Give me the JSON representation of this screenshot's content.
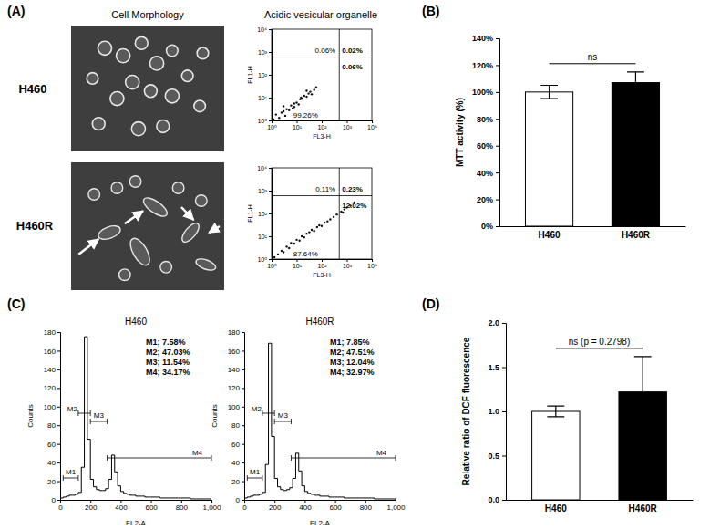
{
  "chart_data": [
    {
      "type": "scatter",
      "panel": "(A)",
      "image_title": "Cell Morphology",
      "column_title": "Acidic vesicular organelle",
      "title": "H460",
      "xlabel": "FL3-H",
      "ylabel": "FL1-H",
      "log": true,
      "color": "#111111",
      "x": [
        1.2,
        1.5,
        2,
        2.5,
        3,
        3.5,
        4,
        5,
        6,
        7,
        8,
        10,
        12,
        14,
        17,
        20,
        25,
        30,
        35,
        40,
        50,
        60,
        3,
        8,
        15,
        25
      ],
      "values": [
        1.1,
        1.8,
        1.3,
        2.2,
        2.5,
        1.6,
        3.1,
        2.8,
        4.5,
        3.4,
        5.5,
        6,
        5,
        8.5,
        9,
        12,
        11,
        15,
        18,
        14,
        22,
        28,
        4.2,
        3.9,
        10,
        20
      ],
      "xlim": [
        1,
        10000
      ],
      "ylim": [
        1,
        10000
      ],
      "xticks": [
        {
          "value": 1,
          "label": "10⁰"
        },
        {
          "value": 10,
          "label": "10¹"
        },
        {
          "value": 100,
          "label": "10²"
        },
        {
          "value": 1000,
          "label": "10³"
        },
        {
          "value": 10000,
          "label": "10⁴"
        }
      ],
      "yticks": [
        {
          "value": 1,
          "label": "10⁰"
        },
        {
          "value": 10,
          "label": "10¹"
        },
        {
          "value": 100,
          "label": "10²"
        },
        {
          "value": 1000,
          "label": "10³"
        },
        {
          "value": 10000,
          "label": "10⁴"
        }
      ],
      "x_gate": 500,
      "y_gate": 600,
      "quadrant_values": [
        0.06,
        0.02,
        99.26,
        0.06
      ],
      "quadrant_labels": [
        "0.06%",
        "0.02%",
        "99.26%",
        "0.06%"
      ]
    },
    {
      "type": "scatter",
      "title": "H460R",
      "xlabel": "FL3-H",
      "ylabel": "FL1-H",
      "log": true,
      "color": "#111111",
      "x": [
        1.3,
        1.8,
        2.5,
        3,
        4,
        5,
        6,
        8,
        10,
        13,
        16,
        20,
        25,
        32,
        40,
        50,
        65,
        80,
        100,
        130,
        170,
        220,
        300,
        400,
        600,
        800,
        1000,
        1400,
        2000,
        700
      ],
      "values": [
        1.2,
        1.6,
        2.3,
        2,
        3.5,
        3,
        5,
        4.8,
        7,
        6.5,
        10,
        9,
        13,
        15,
        19,
        17,
        25,
        30,
        28,
        40,
        45,
        55,
        70,
        90,
        120,
        150,
        180,
        220,
        300,
        110
      ],
      "xlim": [
        1,
        10000
      ],
      "ylim": [
        1,
        10000
      ],
      "xticks": [
        {
          "value": 1,
          "label": "10⁰"
        },
        {
          "value": 10,
          "label": "10¹"
        },
        {
          "value": 100,
          "label": "10²"
        },
        {
          "value": 1000,
          "label": "10³"
        },
        {
          "value": 10000,
          "label": "10⁴"
        }
      ],
      "yticks": [
        {
          "value": 1,
          "label": "10⁰"
        },
        {
          "value": 10,
          "label": "10¹"
        },
        {
          "value": 100,
          "label": "10²"
        },
        {
          "value": 1000,
          "label": "10³"
        },
        {
          "value": 10000,
          "label": "10⁴"
        }
      ],
      "x_gate": 500,
      "y_gate": 600,
      "quadrant_values": [
        0.11,
        0.23,
        87.64,
        12.02
      ],
      "quadrant_labels": [
        "0.11%",
        "0.23%",
        "87.64%",
        "12.02%"
      ]
    },
    {
      "type": "bar",
      "panel": "(B)",
      "ylabel": "MTT activity (%)",
      "categories": [
        "H460",
        "H460R"
      ],
      "values": [
        100,
        107
      ],
      "errors": [
        5,
        8
      ],
      "colors": [
        "#ffffff",
        "#000000"
      ],
      "ylim": [
        0,
        140
      ],
      "yticks": [
        {
          "value": 0,
          "label": "0%"
        },
        {
          "value": 20,
          "label": "20%"
        },
        {
          "value": 40,
          "label": "40%"
        },
        {
          "value": 60,
          "label": "60%"
        },
        {
          "value": 80,
          "label": "80%"
        },
        {
          "value": 100,
          "label": "100%"
        },
        {
          "value": 120,
          "label": "120%"
        },
        {
          "value": 140,
          "label": "140%"
        }
      ],
      "annotation": "ns"
    },
    {
      "type": "histogram",
      "panel": "(C)",
      "title": "H460",
      "xlabel": "FL2-A",
      "ylabel": "Counts",
      "color": "#000000",
      "bins": [
        0,
        20,
        40,
        60,
        80,
        100,
        120,
        140,
        160,
        180,
        200,
        220,
        240,
        260,
        280,
        300,
        320,
        340,
        360,
        380,
        400,
        420,
        440,
        460,
        480,
        500,
        520,
        540,
        560,
        580,
        600,
        620,
        640,
        660,
        680,
        700,
        720,
        740,
        760,
        780,
        800,
        820,
        840,
        860,
        880,
        900,
        920,
        940,
        960,
        980,
        1000
      ],
      "values": [
        2,
        3,
        4,
        5,
        5,
        6,
        8,
        35,
        175,
        65,
        22,
        14,
        11,
        10,
        10,
        12,
        22,
        48,
        30,
        15,
        9,
        7,
        6,
        5,
        5,
        4,
        4,
        4,
        3,
        3,
        3,
        3,
        3,
        2,
        2,
        2,
        2,
        2,
        2,
        2,
        2,
        2,
        2,
        1,
        1,
        1,
        1,
        1,
        1,
        1
      ],
      "xlim": [
        0,
        1000
      ],
      "xticks": [
        0,
        200,
        400,
        600,
        800,
        {
          "value": 1000,
          "label": "1,000"
        }
      ],
      "ylim": [
        0,
        180
      ],
      "yticks": [
        0,
        20,
        40,
        60,
        80,
        100,
        120,
        140,
        160,
        180
      ],
      "gates": [
        {
          "name": "M1",
          "range": [
            20,
            120
          ],
          "value": 7.58,
          "value_label": "M1; 7.58%"
        },
        {
          "name": "M2",
          "range": [
            120,
            200
          ],
          "value": 47.03,
          "value_label": "M2; 47.03%"
        },
        {
          "name": "M3",
          "range": [
            200,
            310
          ],
          "value": 11.54,
          "value_label": "M3; 11.54%"
        },
        {
          "name": "M4",
          "range": [
            310,
            1000
          ],
          "value": 34.17,
          "value_label": "M4; 34.17%"
        }
      ]
    },
    {
      "type": "histogram",
      "title": "H460R",
      "xlabel": "FL2-A",
      "ylabel": "Counts",
      "color": "#000000",
      "bins": [
        0,
        20,
        40,
        60,
        80,
        100,
        120,
        140,
        160,
        180,
        200,
        220,
        240,
        260,
        280,
        300,
        320,
        340,
        360,
        380,
        400,
        420,
        440,
        460,
        480,
        500,
        520,
        540,
        560,
        580,
        600,
        620,
        640,
        660,
        680,
        700,
        720,
        740,
        760,
        780,
        800,
        820,
        840,
        860,
        880,
        900,
        920,
        940,
        960,
        980,
        1000
      ],
      "values": [
        2,
        3,
        4,
        5,
        5,
        6,
        8,
        38,
        168,
        68,
        23,
        14,
        11,
        10,
        11,
        13,
        23,
        50,
        31,
        15,
        9,
        7,
        6,
        5,
        5,
        4,
        4,
        4,
        3,
        3,
        3,
        3,
        3,
        2,
        2,
        2,
        2,
        2,
        2,
        2,
        2,
        2,
        2,
        1,
        1,
        1,
        1,
        1,
        1,
        1
      ],
      "xlim": [
        0,
        1000
      ],
      "xticks": [
        0,
        200,
        400,
        600,
        800,
        {
          "value": 1000,
          "label": "1,000"
        }
      ],
      "ylim": [
        0,
        180
      ],
      "yticks": [
        0,
        20,
        40,
        60,
        80,
        100,
        120,
        140,
        160,
        180
      ],
      "gates": [
        {
          "name": "M1",
          "range": [
            20,
            120
          ],
          "value": 7.85,
          "value_label": "M1; 7.85%"
        },
        {
          "name": "M2",
          "range": [
            120,
            200
          ],
          "value": 47.51,
          "value_label": "M2; 47.51%"
        },
        {
          "name": "M3",
          "range": [
            200,
            310
          ],
          "value": 12.04,
          "value_label": "M3; 12.04%"
        },
        {
          "name": "M4",
          "range": [
            310,
            1000
          ],
          "value": 32.97,
          "value_label": "M4; 32.97%"
        }
      ]
    },
    {
      "type": "bar",
      "panel": "(D)",
      "ylabel": "Relative ratio of DCF fluorescence",
      "categories": [
        "H460",
        "H460R"
      ],
      "values": [
        1.0,
        1.22
      ],
      "errors": [
        0.06,
        0.4
      ],
      "colors": [
        "#ffffff",
        "#000000"
      ],
      "ylim": [
        0,
        2
      ],
      "yticks": [
        {
          "value": 0,
          "label": "0.0"
        },
        0.5,
        {
          "value": 1,
          "label": "1.0"
        },
        1.5,
        {
          "value": 2,
          "label": "2.0"
        }
      ],
      "annotation": "ns (p = 0.2798)"
    }
  ]
}
